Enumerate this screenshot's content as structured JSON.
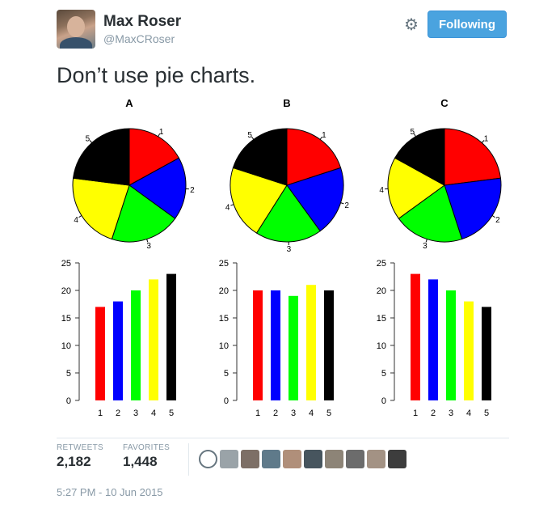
{
  "tweet": {
    "author_name": "Max Roser",
    "author_handle": "@MaxCRoser",
    "follow_label": "Following",
    "text": "Don’t use pie charts.",
    "stats": [
      {
        "label": "RETWEETS",
        "value": "2,182"
      },
      {
        "label": "FAVORITES",
        "value": "1,448"
      }
    ],
    "timestamp": "5:27 PM - 10 Jun 2015"
  },
  "colors": {
    "slice1": "#ff0000",
    "slice2": "#0000ff",
    "slice3": "#00ff00",
    "slice4": "#ffff00",
    "slice5": "#000000",
    "button": "#4aa3df"
  },
  "chart_data": [
    {
      "type": "pie",
      "title": "A",
      "categories": [
        "1",
        "2",
        "3",
        "4",
        "5"
      ],
      "values": [
        17,
        18,
        20,
        22,
        23
      ]
    },
    {
      "type": "pie",
      "title": "B",
      "categories": [
        "1",
        "2",
        "3",
        "4",
        "5"
      ],
      "values": [
        20,
        20,
        19,
        21,
        20
      ]
    },
    {
      "type": "pie",
      "title": "C",
      "categories": [
        "1",
        "2",
        "3",
        "4",
        "5"
      ],
      "values": [
        23,
        22,
        20,
        18,
        17
      ]
    },
    {
      "type": "bar",
      "title": "",
      "categories": [
        "1",
        "2",
        "3",
        "4",
        "5"
      ],
      "values": [
        17,
        18,
        20,
        22,
        23
      ],
      "ylim": [
        0,
        25
      ],
      "yticks": [
        0,
        5,
        10,
        15,
        20,
        25
      ]
    },
    {
      "type": "bar",
      "title": "",
      "categories": [
        "1",
        "2",
        "3",
        "4",
        "5"
      ],
      "values": [
        20,
        20,
        19,
        21,
        20
      ],
      "ylim": [
        0,
        25
      ],
      "yticks": [
        0,
        5,
        10,
        15,
        20,
        25
      ]
    },
    {
      "type": "bar",
      "title": "",
      "categories": [
        "1",
        "2",
        "3",
        "4",
        "5"
      ],
      "values": [
        23,
        22,
        20,
        18,
        17
      ],
      "ylim": [
        0,
        25
      ],
      "yticks": [
        0,
        5,
        10,
        15,
        20,
        25
      ]
    }
  ],
  "retweeter_avatars": [
    "more-avatars-icon",
    "user-avatar",
    "user-avatar",
    "user-avatar",
    "user-avatar",
    "user-avatar",
    "user-avatar",
    "user-avatar",
    "user-avatar",
    "user-avatar"
  ]
}
